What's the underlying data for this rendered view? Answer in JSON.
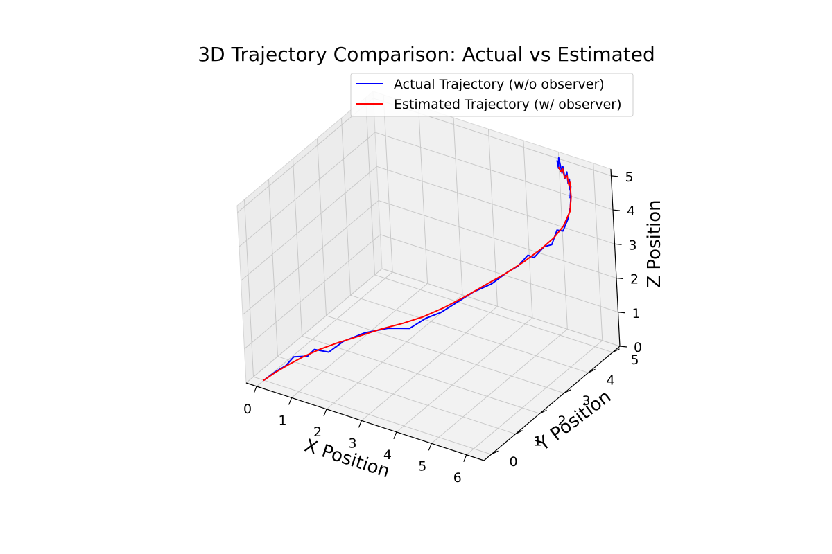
{
  "chart_data": {
    "type": "line",
    "projection": "3d",
    "title": "3D Trajectory Comparison: Actual vs Estimated",
    "xlabel": "X Position",
    "ylabel": "Y Position",
    "zlabel": "Z Position",
    "xlim": [
      -0.3,
      6.5
    ],
    "ylim": [
      -0.3,
      5.3
    ],
    "zlim": [
      0,
      5.2
    ],
    "xticks": [
      "0",
      "1",
      "2",
      "3",
      "4",
      "5",
      "6"
    ],
    "yticks": [
      "0",
      "1",
      "2",
      "3",
      "4",
      "5"
    ],
    "zticks": [
      "0",
      "1",
      "2",
      "3",
      "4",
      "5"
    ],
    "grid": true,
    "legend_position": "top-right",
    "pane_color": "#f2f2f2",
    "series": [
      {
        "name": "Actual Trajectory (w/o observer)",
        "color": "#0000ff",
        "points": [
          [
            0.0,
            0.0,
            0.0
          ],
          [
            0.18,
            0.18,
            0.18
          ],
          [
            0.4,
            0.35,
            0.35
          ],
          [
            0.52,
            0.52,
            0.55
          ],
          [
            0.85,
            0.62,
            0.62
          ],
          [
            1.0,
            0.7,
            0.82
          ],
          [
            1.3,
            0.85,
            0.75
          ],
          [
            1.6,
            1.05,
            1.05
          ],
          [
            2.05,
            1.3,
            1.3
          ],
          [
            2.55,
            1.55,
            1.45
          ],
          [
            2.95,
            1.85,
            1.4
          ],
          [
            3.3,
            2.05,
            1.7
          ],
          [
            3.6,
            2.25,
            1.85
          ],
          [
            3.9,
            2.5,
            2.1
          ],
          [
            4.2,
            2.75,
            2.35
          ],
          [
            4.55,
            3.0,
            2.55
          ],
          [
            4.85,
            3.25,
            2.85
          ],
          [
            5.05,
            3.4,
            3.0
          ],
          [
            5.25,
            3.55,
            3.3
          ],
          [
            5.35,
            3.65,
            3.2
          ],
          [
            5.55,
            3.8,
            3.5
          ],
          [
            5.7,
            3.9,
            3.55
          ],
          [
            5.8,
            4.0,
            3.95
          ],
          [
            5.9,
            4.1,
            3.9
          ],
          [
            5.98,
            4.2,
            4.2
          ],
          [
            6.0,
            4.3,
            4.5
          ],
          [
            5.96,
            4.4,
            4.75
          ],
          [
            5.86,
            4.5,
            4.62
          ],
          [
            5.84,
            4.58,
            4.9
          ],
          [
            5.76,
            4.65,
            4.72
          ],
          [
            5.72,
            4.7,
            5.0
          ],
          [
            5.64,
            4.75,
            4.82
          ],
          [
            5.6,
            4.78,
            5.12
          ],
          [
            5.52,
            4.8,
            4.9
          ],
          [
            5.46,
            4.82,
            5.22
          ],
          [
            5.42,
            4.83,
            5.0
          ],
          [
            5.34,
            4.84,
            5.42
          ],
          [
            5.32,
            4.84,
            5.1
          ],
          [
            5.28,
            4.85,
            5.3
          ]
        ]
      },
      {
        "name": "Estimated Trajectory (w/ observer)",
        "color": "#ff0000",
        "points": [
          [
            0.0,
            0.0,
            0.0
          ],
          [
            0.2,
            0.18,
            0.18
          ],
          [
            0.45,
            0.35,
            0.38
          ],
          [
            0.75,
            0.55,
            0.6
          ],
          [
            1.1,
            0.75,
            0.82
          ],
          [
            1.5,
            0.98,
            1.02
          ],
          [
            1.95,
            1.22,
            1.22
          ],
          [
            2.4,
            1.48,
            1.42
          ],
          [
            2.85,
            1.75,
            1.58
          ],
          [
            3.25,
            2.0,
            1.75
          ],
          [
            3.65,
            2.28,
            1.98
          ],
          [
            4.05,
            2.58,
            2.25
          ],
          [
            4.45,
            2.9,
            2.55
          ],
          [
            4.85,
            3.2,
            2.85
          ],
          [
            5.2,
            3.48,
            3.15
          ],
          [
            5.5,
            3.72,
            3.45
          ],
          [
            5.75,
            3.92,
            3.75
          ],
          [
            5.92,
            4.1,
            4.05
          ],
          [
            6.0,
            4.28,
            4.4
          ],
          [
            5.95,
            4.42,
            4.72
          ],
          [
            5.85,
            4.55,
            4.72
          ],
          [
            5.8,
            4.62,
            4.98
          ],
          [
            5.7,
            4.7,
            4.82
          ],
          [
            5.62,
            4.75,
            5.05
          ],
          [
            5.52,
            4.79,
            4.92
          ],
          [
            5.45,
            4.82,
            5.15
          ],
          [
            5.38,
            4.84,
            5.02
          ],
          [
            5.32,
            4.85,
            5.12
          ]
        ]
      }
    ]
  }
}
